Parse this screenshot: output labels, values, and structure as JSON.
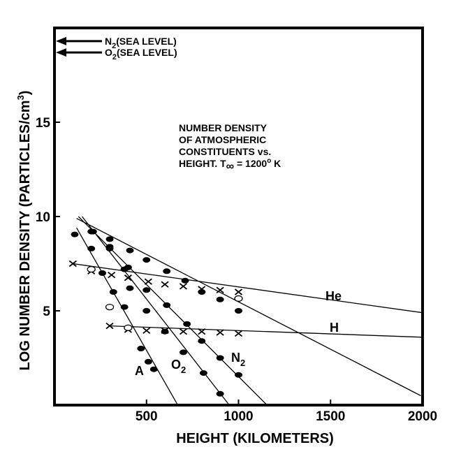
{
  "chart_data": {
    "type": "line",
    "title_lines": [
      "NUMBER DENSITY",
      "OF ATMOSPHERIC",
      "CONSTITUENTS vs.",
      "HEIGHT.  T"
    ],
    "title_temp_sub": "∞",
    "title_temp_value": " = 1200",
    "title_temp_sup": "o",
    "title_temp_unit": " K",
    "xlabel": "HEIGHT (KILOMETERS)",
    "ylabel": "LOG NUMBER DENSITY (PARTICLES/cm",
    "ylabel_sup": "3",
    "ylabel_close": ")",
    "xlim": [
      0,
      2000
    ],
    "ylim": [
      0,
      20
    ],
    "x_ticks": [
      500,
      1000,
      1500,
      2000
    ],
    "y_ticks": [
      5,
      10,
      15
    ],
    "x_tick_labels": [
      "500",
      "1000",
      "1500",
      "2000"
    ],
    "y_tick_labels": [
      "5",
      "10",
      "15"
    ],
    "sea_level": [
      {
        "main": "N",
        "sub": "2",
        "text": "(SEA LEVEL)",
        "y": 19.3
      },
      {
        "main": "O",
        "sub": "2",
        "text": "(SEA LEVEL)",
        "y": 18.7
      }
    ],
    "series": [
      {
        "name": "A",
        "label_main": "A",
        "label_sub": "",
        "marker": "dot",
        "line": [
          [
            120,
            9.4
          ],
          [
            670,
            0
          ]
        ],
        "points": [
          [
            110,
            9.05
          ],
          [
            200,
            8.3
          ],
          [
            260,
            7.0
          ],
          [
            320,
            6.0
          ],
          [
            380,
            5.2
          ],
          [
            470,
            3.0
          ],
          [
            510,
            2.3
          ],
          [
            540,
            1.9
          ]
        ]
      },
      {
        "name": "O2",
        "label_main": "O",
        "label_sub": "2",
        "marker": "dot",
        "line": [
          [
            150,
            10.0
          ],
          [
            950,
            0
          ]
        ],
        "points": [
          [
            210,
            9.2
          ],
          [
            300,
            8.3
          ],
          [
            380,
            7.2
          ],
          [
            410,
            6.2
          ],
          [
            500,
            5.0
          ],
          [
            600,
            3.9
          ],
          [
            700,
            2.8
          ],
          [
            810,
            1.7
          ],
          [
            900,
            0.6
          ]
        ]
      },
      {
        "name": "N2",
        "label_main": "N",
        "label_sub": "2",
        "marker": "dot",
        "line": [
          [
            130,
            10.0
          ],
          [
            1155,
            0
          ]
        ],
        "points": [
          [
            300,
            8.4
          ],
          [
            400,
            7.3
          ],
          [
            500,
            6.1
          ],
          [
            610,
            5.3
          ],
          [
            720,
            4.3
          ],
          [
            800,
            3.4
          ],
          [
            900,
            2.5
          ],
          [
            1000,
            1.6
          ]
        ]
      },
      {
        "name": "O",
        "label_main": "",
        "label_sub": "",
        "marker": "dot",
        "line": [
          [
            120,
            9.9
          ],
          [
            1990,
            0.5
          ]
        ],
        "points": [
          [
            200,
            9.2
          ],
          [
            300,
            8.8
          ],
          [
            410,
            8.2
          ],
          [
            500,
            7.7
          ],
          [
            610,
            7.1
          ],
          [
            710,
            6.6
          ],
          [
            800,
            6.0
          ],
          [
            900,
            5.6
          ],
          [
            1000,
            5.0
          ]
        ]
      },
      {
        "name": "He",
        "label_main": "He",
        "label_sub": "",
        "marker": "x",
        "line": [
          [
            100,
            7.5
          ],
          [
            2000,
            4.9
          ]
        ],
        "points": [
          [
            100,
            7.5
          ],
          [
            200,
            7.1
          ],
          [
            310,
            6.9
          ],
          [
            400,
            6.75
          ],
          [
            510,
            6.55
          ],
          [
            600,
            6.4
          ],
          [
            700,
            6.3
          ],
          [
            800,
            6.15
          ],
          [
            900,
            6.1
          ],
          [
            1000,
            6.0
          ]
        ]
      },
      {
        "name": "H",
        "label_main": "H",
        "label_sub": "",
        "marker": "x",
        "line": [
          [
            300,
            4.2
          ],
          [
            2000,
            3.6
          ]
        ],
        "points": [
          [
            300,
            4.2
          ],
          [
            400,
            4.0
          ],
          [
            500,
            3.95
          ],
          [
            600,
            3.95
          ],
          [
            700,
            3.9
          ],
          [
            800,
            3.9
          ],
          [
            900,
            3.85
          ],
          [
            1000,
            3.8
          ]
        ]
      }
    ],
    "open_points": [
      [
        200,
        7.2
      ],
      [
        300,
        5.2
      ],
      [
        400,
        4.1
      ],
      [
        1000,
        5.65
      ]
    ]
  }
}
